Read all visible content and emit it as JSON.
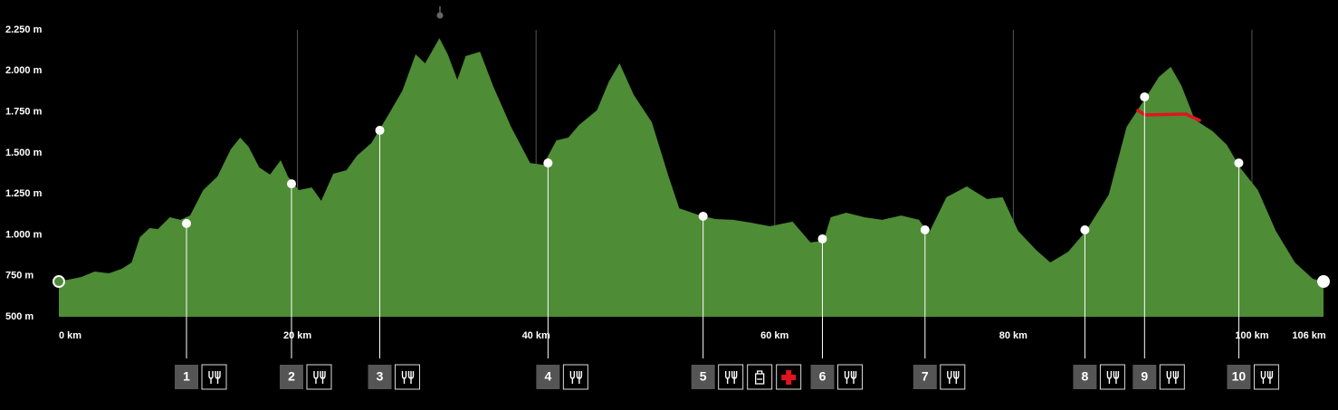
{
  "chart_data": {
    "type": "area",
    "color": "#4e8c36",
    "x": [
      0,
      1.9,
      3.0,
      4.2,
      5.3,
      6.1,
      6.8,
      7.6,
      8.3,
      9.3,
      10.2,
      11.0,
      12.1,
      13.3,
      14.4,
      15.2,
      15.9,
      16.8,
      17.7,
      18.6,
      19.2,
      20.1,
      21.2,
      22.0,
      23.0,
      24.1,
      25.0,
      26.2,
      27.7,
      28.8,
      29.9,
      30.7,
      31.9,
      32.6,
      33.4,
      34.1,
      35.3,
      36.4,
      37.9,
      39.5,
      40.6,
      41.7,
      42.7,
      43.6,
      45.1,
      46.1,
      47.0,
      48.2,
      49.7,
      51.1,
      52.0,
      53.5,
      55.0,
      56.5,
      58.0,
      59.6,
      61.5,
      63.0,
      64.1,
      64.7,
      66.0,
      67.5,
      69.0,
      70.6,
      72.1,
      72.9,
      74.4,
      76.1,
      77.8,
      79.1,
      80.4,
      81.9,
      83.1,
      84.6,
      86.1,
      88.0,
      89.5,
      91.0,
      92.2,
      93.2,
      94.1,
      95.2,
      96.7,
      97.9,
      99.0,
      100.5,
      102.0,
      103.6,
      105.1,
      106
    ],
    "values": [
      715,
      743,
      776,
      765,
      793,
      831,
      986,
      1041,
      1035,
      1107,
      1091,
      1118,
      1273,
      1356,
      1521,
      1593,
      1538,
      1411,
      1367,
      1455,
      1356,
      1273,
      1289,
      1207,
      1372,
      1394,
      1483,
      1560,
      1742,
      1880,
      2101,
      2046,
      2200,
      2101,
      1946,
      2090,
      2117,
      1908,
      1659,
      1438,
      1427,
      1576,
      1593,
      1670,
      1759,
      1935,
      2046,
      1852,
      1687,
      1356,
      1162,
      1124,
      1096,
      1091,
      1074,
      1052,
      1080,
      953,
      964,
      1107,
      1135,
      1107,
      1091,
      1118,
      1091,
      1008,
      1229,
      1295,
      1218,
      1229,
      1024,
      908,
      831,
      897,
      1024,
      1245,
      1659,
      1825,
      1963,
      2024,
      1908,
      1703,
      1632,
      1549,
      1411,
      1273,
      1024,
      831,
      732,
      715
    ],
    "xlim": [
      0,
      106
    ],
    "xticks": [
      {
        "value": 0,
        "label": "0 km"
      },
      {
        "value": 20,
        "label": "20 km"
      },
      {
        "value": 40,
        "label": "40 km"
      },
      {
        "value": 60,
        "label": "60 km"
      },
      {
        "value": 80,
        "label": "80 km"
      },
      {
        "value": 100,
        "label": "100 km"
      },
      {
        "value": 106,
        "label": "106 km"
      }
    ],
    "ylim": [
      500,
      2250
    ],
    "yticks": [
      {
        "value": 500,
        "label": "500 m"
      },
      {
        "value": 750,
        "label": "750 m"
      },
      {
        "value": 1000,
        "label": "1.000 m"
      },
      {
        "value": 1250,
        "label": "1.250 m"
      },
      {
        "value": 1500,
        "label": "1.500 m"
      },
      {
        "value": 1750,
        "label": "1.750 m"
      },
      {
        "value": 2000,
        "label": "2.000 m"
      },
      {
        "value": 2250,
        "label": "2.250 m"
      }
    ],
    "grid": true,
    "checkpoints": [
      {
        "label": "1",
        "km": 10.7,
        "elevation": 1069
      },
      {
        "label": "2",
        "km": 19.5,
        "elevation": 1311
      },
      {
        "label": "3",
        "km": 26.9,
        "elevation": 1637
      },
      {
        "label": "4",
        "km": 41.0,
        "elevation": 1438
      },
      {
        "label": "5",
        "km": 54.0,
        "elevation": 1113
      },
      {
        "label": "6",
        "km": 64.0,
        "elevation": 975
      },
      {
        "label": "7",
        "km": 72.6,
        "elevation": 1030
      },
      {
        "label": "8",
        "km": 86.0,
        "elevation": 1030
      },
      {
        "label": "9",
        "km": 91.0,
        "elevation": 1841
      },
      {
        "label": "10",
        "km": 98.9,
        "elevation": 1438
      }
    ]
  }
}
